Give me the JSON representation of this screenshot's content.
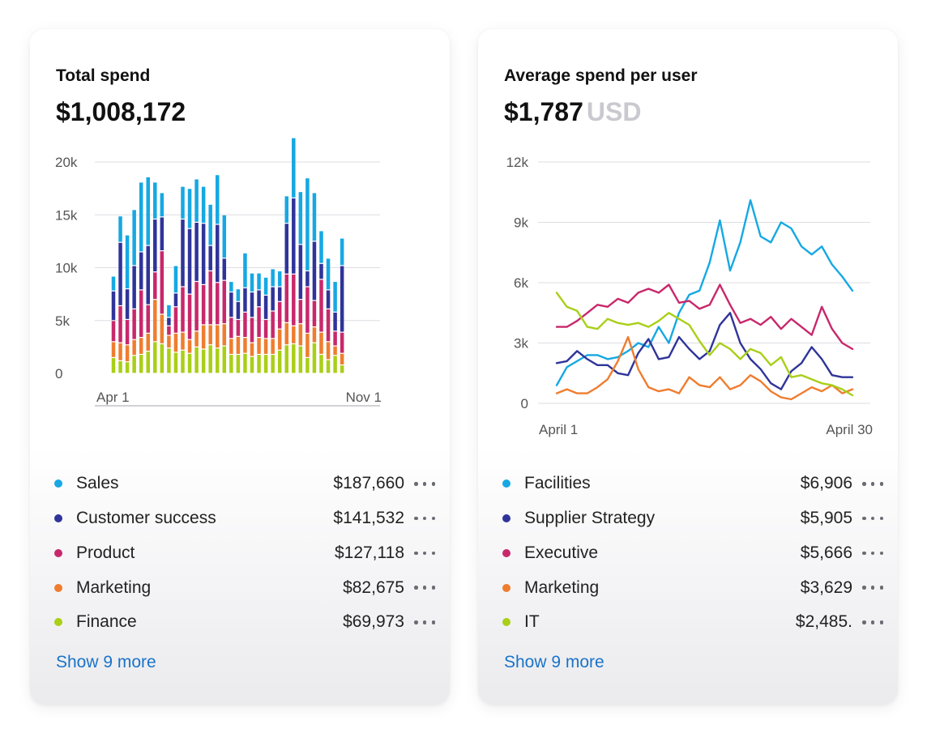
{
  "left_card": {
    "title": "Total spend",
    "amount": "$1,008,172",
    "show_more": "Show 9 more",
    "legend": [
      {
        "name": "Sales",
        "value": "$187,660",
        "color": "#16a8e3"
      },
      {
        "name": "Customer success",
        "value": "$141,532",
        "color": "#2f349a"
      },
      {
        "name": "Product",
        "value": "$127,118",
        "color": "#c8286b"
      },
      {
        "name": "Marketing",
        "value": "$82,675",
        "color": "#ef7d2f"
      },
      {
        "name": "Finance",
        "value": "$69,973",
        "color": "#a9cf17"
      }
    ]
  },
  "right_card": {
    "title": "Average spend per user",
    "amount": "$1,787",
    "unit": "USD",
    "show_more": "Show 9 more",
    "legend": [
      {
        "name": "Facilities",
        "value": "$6,906",
        "color": "#16a8e3"
      },
      {
        "name": "Supplier Strategy",
        "value": "$5,905",
        "color": "#2f349a"
      },
      {
        "name": "Executive",
        "value": "$5,666",
        "color": "#c8286b"
      },
      {
        "name": "Marketing",
        "value": "$3,629",
        "color": "#ef7d2f"
      },
      {
        "name": "IT",
        "value": "$2,485.",
        "color": "#a9cf17"
      }
    ]
  },
  "chart_data": [
    {
      "type": "bar",
      "stacked": true,
      "x_tick_labels": [
        "Apr 1",
        "Nov 1"
      ],
      "y_tick_labels": [
        "0",
        "5k",
        "10k",
        "15k",
        "20k"
      ],
      "ylim": [
        0,
        20000
      ],
      "grid": true,
      "stack_order": [
        "Finance",
        "Marketing",
        "Product",
        "Customer success",
        "Sales"
      ],
      "series": [
        {
          "name": "Finance",
          "color": "#a9cf17",
          "values": [
            1500,
            1200,
            1100,
            1700,
            1800,
            2100,
            3000,
            2800,
            2400,
            2000,
            2200,
            1900,
            2500,
            2300,
            2700,
            2400,
            2600,
            1800,
            1800,
            1900,
            1600,
            1800,
            1800,
            1800,
            2200,
            2700,
            2800,
            2600,
            1500,
            2900,
            1800,
            1300,
            1700,
            800
          ]
        },
        {
          "name": "Marketing",
          "color": "#ef7d2f",
          "values": [
            1500,
            1700,
            1600,
            1500,
            1600,
            1700,
            4000,
            2800,
            1200,
            1800,
            1700,
            1300,
            1500,
            2300,
            1900,
            2200,
            2100,
            1500,
            1700,
            1500,
            1300,
            1600,
            1500,
            1500,
            2000,
            2100,
            1700,
            2100,
            2300,
            1500,
            2100,
            1700,
            900,
            1100
          ]
        },
        {
          "name": "Product",
          "color": "#c8286b",
          "values": [
            2000,
            3500,
            2400,
            2900,
            4500,
            2700,
            2600,
            6000,
            900,
            2500,
            4300,
            4300,
            4700,
            3800,
            5100,
            4000,
            4100,
            2000,
            1600,
            2400,
            2400,
            2900,
            1800,
            2600,
            2600,
            4600,
            4900,
            2300,
            4400,
            2500,
            5000,
            3100,
            1400,
            2000
          ]
        },
        {
          "name": "Customer success",
          "color": "#2f349a",
          "values": [
            2800,
            6000,
            2900,
            4100,
            3600,
            5600,
            5000,
            3200,
            800,
            1300,
            6400,
            6200,
            5600,
            5800,
            2400,
            5500,
            2100,
            2400,
            1700,
            2300,
            2400,
            1600,
            2300,
            2300,
            1400,
            4800,
            7200,
            5200,
            1500,
            5600,
            1500,
            1800,
            1800,
            6300
          ]
        },
        {
          "name": "Sales",
          "color": "#16a8e3",
          "values": [
            1400,
            2500,
            5100,
            5300,
            6600,
            6500,
            3500,
            2300,
            1200,
            2600,
            3100,
            3800,
            4100,
            3500,
            3900,
            4700,
            4100,
            1000,
            1200,
            3300,
            1800,
            1600,
            1700,
            1700,
            1500,
            2600,
            5700,
            5000,
            8800,
            4600,
            3100,
            3000,
            2900,
            2600
          ]
        }
      ]
    },
    {
      "type": "line",
      "x_tick_labels": [
        "April 1",
        "April 30"
      ],
      "y_tick_labels": [
        "0",
        "3k",
        "6k",
        "9k",
        "12k"
      ],
      "ylim": [
        0,
        12000
      ],
      "grid": true,
      "series": [
        {
          "name": "Facilities",
          "color": "#16a8e3",
          "values": [
            900,
            1800,
            2100,
            2400,
            2400,
            2200,
            2300,
            2600,
            3000,
            2800,
            3800,
            3000,
            4500,
            5400,
            5600,
            7000,
            9100,
            6600,
            8000,
            10100,
            8300,
            8000,
            9000,
            8700,
            7800,
            7400,
            7800,
            6900,
            6300,
            5600
          ]
        },
        {
          "name": "Supplier Strategy",
          "color": "#2f349a",
          "values": [
            2000,
            2100,
            2600,
            2200,
            1900,
            1900,
            1500,
            1400,
            2500,
            3200,
            2200,
            2300,
            3300,
            2700,
            2200,
            2600,
            3900,
            4500,
            3000,
            2200,
            1700,
            1000,
            700,
            1600,
            2000,
            2800,
            2200,
            1400,
            1300,
            1300
          ]
        },
        {
          "name": "Executive",
          "color": "#c8286b",
          "values": [
            3800,
            3800,
            4100,
            4500,
            4900,
            4800,
            5200,
            5000,
            5500,
            5700,
            5500,
            5900,
            5000,
            5100,
            4700,
            4900,
            5900,
            4900,
            4000,
            4200,
            3900,
            4300,
            3700,
            4200,
            3800,
            3400,
            4800,
            3700,
            3000,
            2700
          ]
        },
        {
          "name": "Marketing",
          "color": "#ef7d2f",
          "values": [
            500,
            700,
            500,
            500,
            800,
            1200,
            2100,
            3300,
            1700,
            800,
            600,
            700,
            500,
            1300,
            900,
            800,
            1300,
            700,
            900,
            1400,
            1100,
            600,
            300,
            200,
            500,
            800,
            600,
            900,
            500,
            700
          ]
        },
        {
          "name": "IT",
          "color": "#a9cf17",
          "values": [
            5500,
            4800,
            4600,
            3800,
            3700,
            4200,
            4000,
            3900,
            4000,
            3800,
            4100,
            4500,
            4200,
            3900,
            3100,
            2400,
            3000,
            2700,
            2200,
            2700,
            2500,
            1900,
            2300,
            1300,
            1400,
            1200,
            1000,
            900,
            700,
            400
          ]
        }
      ]
    }
  ]
}
